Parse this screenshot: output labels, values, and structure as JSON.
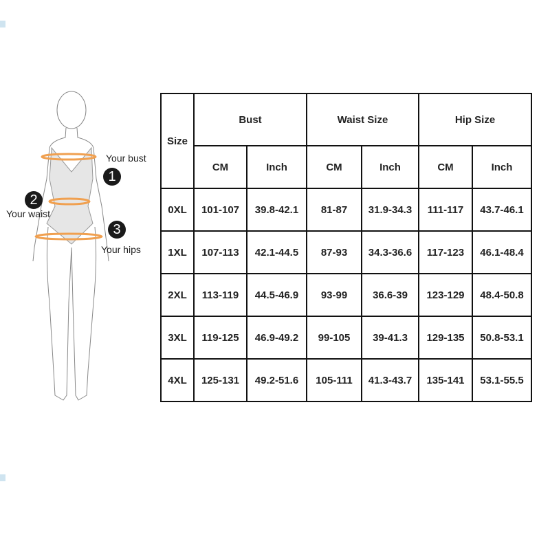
{
  "figure": {
    "labels": {
      "bust": "Your bust",
      "waist": "Your waist",
      "hips": "Your hips"
    },
    "markers": [
      "1",
      "2",
      "3"
    ],
    "band_color": "#f0a050"
  },
  "table": {
    "size_header": "Size",
    "groups": [
      "Bust",
      "Waist Size",
      "Hip Size"
    ],
    "units": [
      "CM",
      "Inch",
      "CM",
      "Inch",
      "CM",
      "Inch"
    ],
    "rows": [
      [
        "0XL",
        "101-107",
        "39.8-42.1",
        "81-87",
        "31.9-34.3",
        "111-117",
        "43.7-46.1"
      ],
      [
        "1XL",
        "107-113",
        "42.1-44.5",
        "87-93",
        "34.3-36.6",
        "117-123",
        "46.1-48.4"
      ],
      [
        "2XL",
        "113-119",
        "44.5-46.9",
        "93-99",
        "36.6-39",
        "123-129",
        "48.4-50.8"
      ],
      [
        "3XL",
        "119-125",
        "46.9-49.2",
        "99-105",
        "39-41.3",
        "129-135",
        "50.8-53.1"
      ],
      [
        "4XL",
        "125-131",
        "49.2-51.6",
        "105-111",
        "41.3-43.7",
        "135-141",
        "53.1-55.5"
      ]
    ]
  }
}
